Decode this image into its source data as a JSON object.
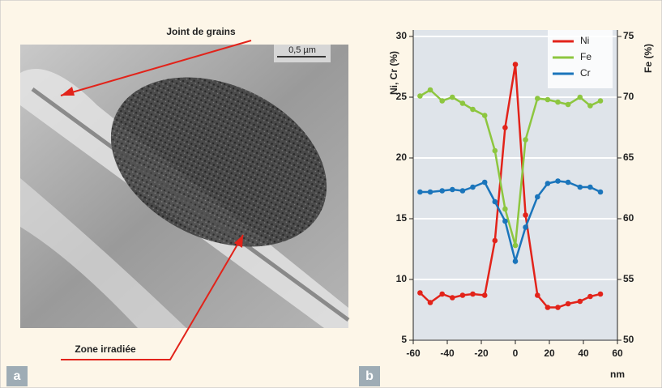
{
  "panel_a": {
    "label": "a",
    "grain_boundary": "Joint de grains",
    "irradiated_zone": "Zone irradiée",
    "scale_bar": "0,5 µm"
  },
  "chart_data": {
    "type": "line",
    "panel_label": "b",
    "y_label": "Ni, Cr (%)",
    "y2_label": "Fe (%)",
    "x_label": "nm",
    "x": [
      -56,
      -50,
      -43,
      -37,
      -31,
      -25,
      -18,
      -12,
      -6,
      0,
      6,
      13,
      19,
      25,
      31,
      38,
      44,
      50
    ],
    "series": [
      {
        "name": "Ni",
        "color": "#e2231a",
        "values": [
          8.9,
          8.1,
          8.8,
          8.5,
          8.7,
          8.8,
          8.7,
          13.2,
          22.5,
          27.7,
          15.3,
          8.7,
          7.7,
          7.7,
          8.0,
          8.2,
          8.6,
          8.8
        ]
      },
      {
        "name": "Fe",
        "color": "#8dc63f",
        "axis": "y2",
        "values": [
          70.1,
          70.6,
          69.7,
          70.0,
          69.5,
          69.0,
          68.5,
          65.6,
          60.8,
          57.8,
          66.5,
          69.9,
          69.8,
          69.6,
          69.4,
          70.0,
          69.3,
          69.7
        ]
      },
      {
        "name": "Cr",
        "color": "#1b75bb",
        "values": [
          17.2,
          17.2,
          17.3,
          17.4,
          17.3,
          17.6,
          18.0,
          16.4,
          14.8,
          11.5,
          14.3,
          16.8,
          17.9,
          18.1,
          18.0,
          17.6,
          17.6,
          17.2
        ]
      }
    ],
    "xlim": [
      -60,
      60
    ],
    "xticks": [
      -60,
      -40,
      -20,
      0,
      20,
      40,
      60
    ],
    "ylim": [
      5,
      30
    ],
    "yticks": [
      5,
      10,
      15,
      20,
      25,
      30
    ],
    "y2lim": [
      50,
      75
    ],
    "y2ticks": [
      50,
      55,
      60,
      65,
      70,
      75
    ],
    "grid": true,
    "legend": "top-right"
  }
}
